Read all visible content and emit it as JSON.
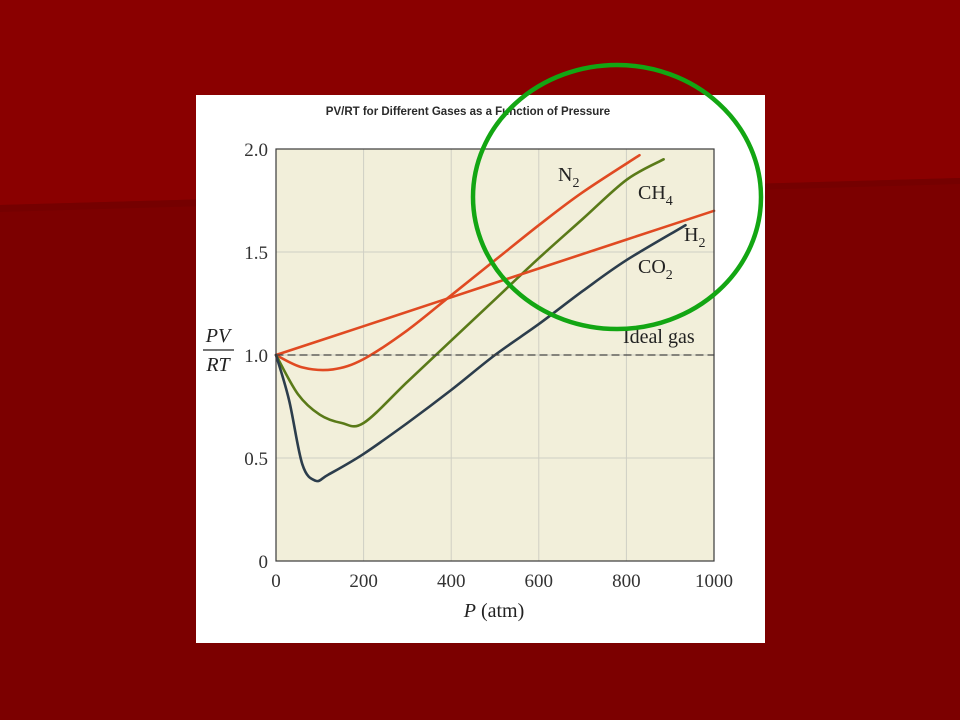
{
  "slide": {
    "background": "#7c0000",
    "accent_dark": "#6a0000",
    "highlight_color": "#13a613"
  },
  "chart_data": {
    "type": "line",
    "title": "PV/RT for Different Gases as a Function of Pressure",
    "xlabel_var": "P",
    "xlabel_unit": "(atm)",
    "ylabel_top": "PV",
    "ylabel_bottom": "RT",
    "xlim": [
      0,
      1000
    ],
    "ylim": [
      0,
      2.0
    ],
    "xticks": [
      0,
      200,
      400,
      600,
      800,
      1000
    ],
    "yticks": [
      0,
      0.5,
      1.0,
      1.5,
      2.0
    ],
    "xtick_labels": [
      "0",
      "200",
      "400",
      "600",
      "800",
      "1000"
    ],
    "ytick_labels": [
      "0",
      "0.5",
      "1.0",
      "1.5",
      "2.0"
    ],
    "grid": true,
    "plot_background": "#f2efda",
    "series": [
      {
        "key": "N2",
        "formula": "N",
        "subscript": "2",
        "color": "#e04a22",
        "x": [
          0,
          60,
          130,
          200,
          300,
          400,
          500,
          600,
          700,
          830
        ],
        "y": [
          1.0,
          0.94,
          0.93,
          0.98,
          1.12,
          1.29,
          1.46,
          1.63,
          1.79,
          1.97
        ]
      },
      {
        "key": "CH4",
        "formula": "CH",
        "subscript": "4",
        "color": "#5a7a18",
        "x": [
          0,
          50,
          100,
          150,
          200,
          300,
          400,
          500,
          600,
          700,
          800,
          885
        ],
        "y": [
          1.0,
          0.81,
          0.71,
          0.67,
          0.67,
          0.87,
          1.07,
          1.27,
          1.47,
          1.66,
          1.85,
          1.95
        ]
      },
      {
        "key": "H2",
        "formula": "H",
        "subscript": "2",
        "color": "#e04a22",
        "x": [
          0,
          200,
          400,
          600,
          800,
          1000
        ],
        "y": [
          1.0,
          1.14,
          1.28,
          1.42,
          1.56,
          1.7
        ]
      },
      {
        "key": "CO2",
        "formula": "CO",
        "subscript": "2",
        "color": "#2c3d4c",
        "x": [
          0,
          30,
          60,
          90,
          120,
          200,
          300,
          400,
          500,
          600,
          700,
          800,
          935
        ],
        "y": [
          1.0,
          0.78,
          0.47,
          0.39,
          0.42,
          0.52,
          0.67,
          0.83,
          1.0,
          1.15,
          1.31,
          1.46,
          1.63
        ]
      },
      {
        "key": "ideal",
        "name": "Ideal gas",
        "color": "#444444",
        "dashed": true,
        "x": [
          0,
          1000
        ],
        "y": [
          1.0,
          1.0
        ]
      }
    ]
  }
}
